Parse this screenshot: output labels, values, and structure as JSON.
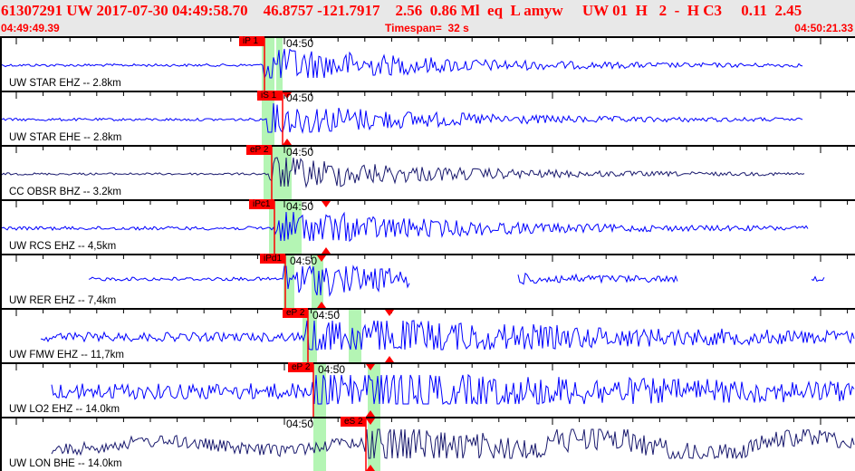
{
  "header": {
    "title": "61307291 UW 2017-07-30 04:49:58.70    46.8757 -121.7917    2.56  0.86 Ml  eq  L amyw     UW 01  H   2  -  H C3     0.11  2.45",
    "start_time": "04:49:49.39",
    "timespan": "Timespan=  32 s",
    "end_time": "04:50:21.33"
  },
  "time_marker": "04:50",
  "colors": {
    "header_bg": "#e8e8e8",
    "header_text": "#ff0000",
    "trace_blue": "#0000ff",
    "trace_navy": "#1a1a6e",
    "pick": "#ff0000",
    "window": "#b4f5b4"
  },
  "traces": [
    {
      "label": "UW STAR EHZ -- 2.8km",
      "pick": "iP 1"
    },
    {
      "label": "UW STAR EHE -- 2.8km",
      "pick": "iS 1"
    },
    {
      "label": "CC OBSR BHZ -- 3.2km",
      "pick": "eP 2"
    },
    {
      "label": "UW RCS EHZ -- 4,5km",
      "pick": "iPc1"
    },
    {
      "label": "UW RER EHZ -- 7,4km",
      "pick": "iPd1"
    },
    {
      "label": "UW FMW EHZ -- 11,7km",
      "pick": "eP 2"
    },
    {
      "label": "UW LO2 EHZ -- 14.0km",
      "pick": "eP 2"
    },
    {
      "label": "UW LON BHE -- 14.0km",
      "pick": "eS 2"
    }
  ]
}
